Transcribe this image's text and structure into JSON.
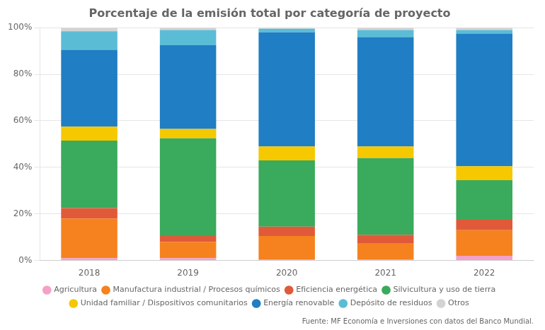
{
  "chart_data": {
    "type": "bar",
    "title": "Porcentaje de la emisión total por categoría de proyecto",
    "categories": [
      "2018",
      "2019",
      "2020",
      "2021",
      "2022"
    ],
    "series": [
      {
        "name": "Agricultura",
        "color": "#f5a0c8",
        "values": [
          1.0,
          1.0,
          0.5,
          0.5,
          2.0
        ]
      },
      {
        "name": "Manufactura industrial / Procesos químicos",
        "color": "#f5821f",
        "values": [
          17.0,
          7.0,
          10.0,
          7.0,
          11.0
        ]
      },
      {
        "name": "Eficiencia energética",
        "color": "#e05a3a",
        "values": [
          4.5,
          2.5,
          4.0,
          3.5,
          4.5
        ]
      },
      {
        "name": "Silvicultura y uso de tierra",
        "color": "#3aaa5c",
        "values": [
          29.0,
          42.0,
          28.5,
          33.0,
          17.0
        ]
      },
      {
        "name": "Unidad familiar / Dispositivos comunitarios",
        "color": "#f5c800",
        "values": [
          6.0,
          4.0,
          6.0,
          5.0,
          6.0
        ]
      },
      {
        "name": "Energía renovable",
        "color": "#1f7ec4",
        "values": [
          33.0,
          36.0,
          49.0,
          47.0,
          57.0
        ]
      },
      {
        "name": "Depósito de residuos",
        "color": "#5bbcd6",
        "values": [
          8.0,
          6.5,
          1.5,
          3.0,
          1.5
        ]
      },
      {
        "name": "Otros",
        "color": "#d3d3d3",
        "values": [
          1.5,
          1.0,
          0.5,
          1.0,
          1.0
        ]
      }
    ],
    "stacked": true,
    "ylim": [
      0,
      100
    ],
    "yticks": [
      {
        "value": 0,
        "label": "0%"
      },
      {
        "value": 20,
        "label": "20%"
      },
      {
        "value": 40,
        "label": "40%"
      },
      {
        "value": 60,
        "label": "60%"
      },
      {
        "value": 80,
        "label": "80%"
      },
      {
        "value": 100,
        "label": "100%"
      }
    ],
    "grid": true,
    "legend": "bottom",
    "annotations": [
      "Fuente: MF Economía e Inversiones con datos del Banco Mundial."
    ]
  }
}
